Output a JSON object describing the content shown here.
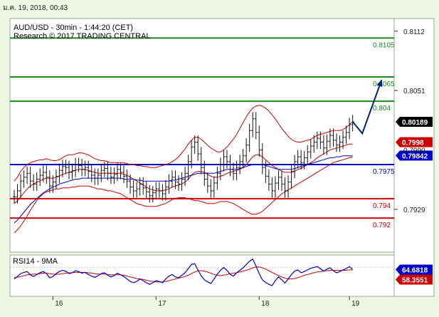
{
  "timestamp": "ม.ค. 19, 2018, 00:43",
  "chart_data": {
    "type": "candlestick",
    "title": "AUD/USD - 30min - 1:44:20 (CET)",
    "subtitle": "Research © 2017 TRADING CENTRAL",
    "ylim": [
      0.7885,
      0.8125
    ],
    "y_ticks": [
      "0.8112",
      "0.8051",
      "0.7929"
    ],
    "x_ticks": [
      "16",
      "17",
      "18",
      "19"
    ],
    "levels": [
      {
        "value": 0.8105,
        "label": "0.8105",
        "color": "#1e8a1e"
      },
      {
        "value": 0.8065,
        "label": "0.8065",
        "color": "#1e8a1e"
      },
      {
        "value": 0.804,
        "label": "0.804",
        "color": "#1e8a1e"
      },
      {
        "value": 0.7975,
        "label": "0.7975",
        "color": "#0000cc"
      },
      {
        "value": 0.794,
        "label": "0.794",
        "color": "#cc0000"
      },
      {
        "value": 0.792,
        "label": "0.792",
        "color": "#cc0000"
      }
    ],
    "price_badges": [
      {
        "label": "0.80189",
        "value": 0.80189,
        "color": "#000000"
      },
      {
        "label": "0.7998",
        "value": 0.7998,
        "color": "#cc0000"
      },
      {
        "label": "0.79842",
        "value": 0.79842,
        "color": "#0000cc"
      }
    ],
    "hidden_tick": "0.7990",
    "close": [
      0.7942,
      0.7948,
      0.7958,
      0.7962,
      0.7966,
      0.7958,
      0.7955,
      0.796,
      0.7964,
      0.7967,
      0.7962,
      0.7953,
      0.7957,
      0.7963,
      0.7969,
      0.7973,
      0.7972,
      0.7967,
      0.7969,
      0.7975,
      0.7974,
      0.797,
      0.7972,
      0.7968,
      0.7964,
      0.7961,
      0.7964,
      0.7969,
      0.7971,
      0.7966,
      0.7962,
      0.7965,
      0.797,
      0.7967,
      0.7963,
      0.7958,
      0.7952,
      0.7948,
      0.795,
      0.7955,
      0.7951,
      0.7947,
      0.7943,
      0.7946,
      0.795,
      0.7948,
      0.7945,
      0.7952,
      0.7958,
      0.7962,
      0.7957,
      0.7955,
      0.796,
      0.7966,
      0.7978,
      0.7993,
      0.7998,
      0.7986,
      0.7972,
      0.796,
      0.7953,
      0.7948,
      0.7956,
      0.7966,
      0.7975,
      0.7983,
      0.7978,
      0.797,
      0.7966,
      0.7972,
      0.7978,
      0.7984,
      0.7995,
      0.801,
      0.8022,
      0.8008,
      0.799,
      0.7972,
      0.7963,
      0.7955,
      0.7948,
      0.7956,
      0.7962,
      0.7955,
      0.7948,
      0.7957,
      0.7968,
      0.7978,
      0.7983,
      0.7977,
      0.7982,
      0.7988,
      0.7994,
      0.7998,
      0.8002,
      0.7998,
      0.7992,
      0.7999,
      0.8005,
      0.8,
      0.7995,
      0.7998,
      0.8003,
      0.8008,
      0.8016,
      0.8019
    ],
    "upper_band": [
      0.7958,
      0.7962,
      0.7968,
      0.7972,
      0.7975,
      0.7977,
      0.7978,
      0.7979,
      0.798,
      0.798,
      0.7981,
      0.798,
      0.7979,
      0.7979,
      0.798,
      0.7982,
      0.7984,
      0.7985,
      0.7985,
      0.7986,
      0.7987,
      0.7987,
      0.7986,
      0.7985,
      0.7983,
      0.7981,
      0.798,
      0.7979,
      0.7979,
      0.7978,
      0.7977,
      0.7977,
      0.7977,
      0.7977,
      0.7977,
      0.7976,
      0.7975,
      0.7975,
      0.7974,
      0.7974,
      0.7973,
      0.7973,
      0.7972,
      0.7972,
      0.7972,
      0.7973,
      0.7974,
      0.7975,
      0.7976,
      0.7978,
      0.798,
      0.7983,
      0.7987,
      0.7991,
      0.7996,
      0.8,
      0.8003,
      0.8003,
      0.8001,
      0.7998,
      0.7995,
      0.7992,
      0.799,
      0.7988,
      0.7988,
      0.799,
      0.7993,
      0.7997,
      0.8001,
      0.8006,
      0.8012,
      0.8018,
      0.8024,
      0.8029,
      0.8033,
      0.8035,
      0.8036,
      0.8035,
      0.8033,
      0.803,
      0.8026,
      0.8022,
      0.8017,
      0.8012,
      0.8008,
      0.8004,
      0.8001,
      0.7999,
      0.7998,
      0.7998,
      0.7999,
      0.8,
      0.8001,
      0.8003,
      0.8005,
      0.8006,
      0.8007,
      0.8008,
      0.8009,
      0.801,
      0.801,
      0.801,
      0.8011,
      0.8013,
      0.8016,
      0.8019
    ],
    "lower_band": [
      0.7905,
      0.7908,
      0.7912,
      0.7917,
      0.7922,
      0.7928,
      0.7933,
      0.7938,
      0.7942,
      0.7945,
      0.7947,
      0.7948,
      0.7949,
      0.795,
      0.795,
      0.7951,
      0.7951,
      0.7951,
      0.7952,
      0.7952,
      0.7953,
      0.7953,
      0.7953,
      0.7953,
      0.7952,
      0.7951,
      0.795,
      0.795,
      0.7949,
      0.7948,
      0.7948,
      0.7947,
      0.7946,
      0.7945,
      0.7943,
      0.7941,
      0.7939,
      0.7937,
      0.7935,
      0.7934,
      0.7933,
      0.7932,
      0.7932,
      0.7932,
      0.7932,
      0.7933,
      0.7934,
      0.7935,
      0.7937,
      0.7939,
      0.794,
      0.7941,
      0.7941,
      0.7941,
      0.794,
      0.7939,
      0.7938,
      0.7938,
      0.7937,
      0.7936,
      0.7935,
      0.7935,
      0.7935,
      0.7936,
      0.7937,
      0.7937,
      0.7937,
      0.7936,
      0.7935,
      0.7933,
      0.7931,
      0.7929,
      0.7927,
      0.7925,
      0.7924,
      0.7924,
      0.7925,
      0.7927,
      0.793,
      0.7933,
      0.7936,
      0.7939,
      0.7942,
      0.7945,
      0.7947,
      0.7949,
      0.7951,
      0.7953,
      0.7955,
      0.7957,
      0.7959,
      0.7961,
      0.7963,
      0.7965,
      0.7967,
      0.7969,
      0.7971,
      0.7973,
      0.7975,
      0.7977,
      0.7978,
      0.7979,
      0.798,
      0.7981,
      0.7982,
      0.7983
    ],
    "ma_blue": [
      0.7915,
      0.7918,
      0.7922,
      0.7926,
      0.793,
      0.7934,
      0.7937,
      0.794,
      0.7943,
      0.7946,
      0.7948,
      0.795,
      0.7952,
      0.7953,
      0.7955,
      0.7956,
      0.7957,
      0.7958,
      0.7959,
      0.796,
      0.796,
      0.7961,
      0.7961,
      0.7961,
      0.7961,
      0.7961,
      0.7961,
      0.7961,
      0.7961,
      0.7961,
      0.7961,
      0.7961,
      0.7961,
      0.7961,
      0.796,
      0.796,
      0.796,
      0.796,
      0.7959,
      0.7959,
      0.7958,
      0.7958,
      0.7958,
      0.7958,
      0.7958,
      0.7958,
      0.7958,
      0.7958,
      0.7958,
      0.7959,
      0.7959,
      0.796,
      0.7961,
      0.7962,
      0.7963,
      0.7964,
      0.7965,
      0.7966,
      0.7966,
      0.7966,
      0.7966,
      0.7966,
      0.7966,
      0.7967,
      0.7968,
      0.7969,
      0.797,
      0.797,
      0.797,
      0.797,
      0.7971,
      0.7972,
      0.7973,
      0.7974,
      0.7975,
      0.7975,
      0.7975,
      0.7975,
      0.7974,
      0.7973,
      0.7972,
      0.7971,
      0.797,
      0.797,
      0.797,
      0.797,
      0.797,
      0.7971,
      0.7972,
      0.7973,
      0.7974,
      0.7975,
      0.7976,
      0.7977,
      0.7978,
      0.7979,
      0.798,
      0.7981,
      0.7982,
      0.7982,
      0.7983,
      0.7983,
      0.7984,
      0.7984,
      0.7984,
      0.7984
    ],
    "ma_red": [
      0.7935,
      0.7938,
      0.7942,
      0.7946,
      0.795,
      0.7953,
      0.7955,
      0.7957,
      0.7958,
      0.796,
      0.7961,
      0.7961,
      0.7961,
      0.7962,
      0.7963,
      0.7965,
      0.7966,
      0.7967,
      0.7968,
      0.7969,
      0.797,
      0.797,
      0.797,
      0.7969,
      0.7968,
      0.7967,
      0.7966,
      0.7966,
      0.7966,
      0.7966,
      0.7966,
      0.7966,
      0.7966,
      0.7966,
      0.7965,
      0.7964,
      0.7962,
      0.796,
      0.7958,
      0.7956,
      0.7954,
      0.7952,
      0.795,
      0.7949,
      0.7948,
      0.7948,
      0.7948,
      0.7949,
      0.795,
      0.7952,
      0.7953,
      0.7954,
      0.7955,
      0.7957,
      0.796,
      0.7964,
      0.7967,
      0.7968,
      0.7968,
      0.7967,
      0.7965,
      0.7963,
      0.7962,
      0.7962,
      0.7963,
      0.7964,
      0.7966,
      0.7967,
      0.7968,
      0.7969,
      0.797,
      0.7972,
      0.7975,
      0.7979,
      0.7983,
      0.7985,
      0.7985,
      0.7983,
      0.798,
      0.7977,
      0.7974,
      0.7972,
      0.797,
      0.7968,
      0.7967,
      0.7967,
      0.7967,
      0.7968,
      0.797,
      0.7971,
      0.7973,
      0.7975,
      0.7977,
      0.7979,
      0.7982,
      0.7984,
      0.7986,
      0.7988,
      0.799,
      0.7991,
      0.7992,
      0.7993,
      0.7994,
      0.7995,
      0.7996,
      0.7996
    ],
    "projection": [
      {
        "i": 105,
        "v": 0.8019
      },
      {
        "i": 108,
        "v": 0.8007
      },
      {
        "i": 114,
        "v": 0.8062
      }
    ],
    "x_ticks_index": [
      12,
      44,
      76,
      104
    ],
    "n_points": 118,
    "rsi": {
      "title": "RSI14 - 9MA",
      "ylim": [
        0,
        100
      ],
      "y_tick": "70",
      "badges": [
        {
          "label": "64.6818",
          "value": 64.6818,
          "color": "#0000cc"
        },
        {
          "label": "58.3551",
          "value": 58.3551,
          "color": "#cc0000"
        }
      ],
      "rsi": [
        42,
        48,
        55,
        58,
        60,
        52,
        48,
        53,
        57,
        60,
        55,
        45,
        48,
        55,
        60,
        63,
        61,
        55,
        57,
        62,
        60,
        56,
        58,
        53,
        49,
        46,
        50,
        55,
        57,
        51,
        47,
        50,
        56,
        52,
        48,
        42,
        36,
        33,
        36,
        42,
        38,
        33,
        29,
        33,
        38,
        36,
        33,
        42,
        49,
        53,
        47,
        45,
        51,
        57,
        67,
        77,
        79,
        64,
        50,
        40,
        35,
        31,
        42,
        54,
        63,
        70,
        63,
        53,
        49,
        57,
        63,
        69,
        77,
        85,
        90,
        74,
        55,
        40,
        34,
        29,
        26,
        38,
        47,
        40,
        32,
        42,
        53,
        61,
        64,
        57,
        60,
        64,
        68,
        70,
        72,
        67,
        61,
        66,
        69,
        62,
        57,
        60,
        64,
        67,
        72,
        65
      ],
      "ma": [
        45,
        46,
        48,
        50,
        52,
        53,
        54,
        54,
        55,
        56,
        56,
        55,
        54,
        53,
        54,
        55,
        56,
        57,
        57,
        58,
        58,
        58,
        58,
        57,
        56,
        55,
        54,
        54,
        54,
        53,
        52,
        52,
        52,
        52,
        51,
        49,
        47,
        45,
        43,
        42,
        41,
        39,
        37,
        36,
        35,
        35,
        35,
        36,
        38,
        40,
        42,
        44,
        46,
        48,
        51,
        55,
        59,
        62,
        62,
        61,
        59,
        56,
        53,
        51,
        50,
        51,
        53,
        55,
        56,
        57,
        59,
        61,
        63,
        66,
        69,
        71,
        71,
        69,
        66,
        62,
        58,
        54,
        50,
        47,
        44,
        42,
        42,
        43,
        45,
        48,
        51,
        53,
        55,
        57,
        59,
        60,
        61,
        62,
        63,
        63,
        63,
        63,
        63,
        63,
        64,
        64
      ]
    }
  }
}
